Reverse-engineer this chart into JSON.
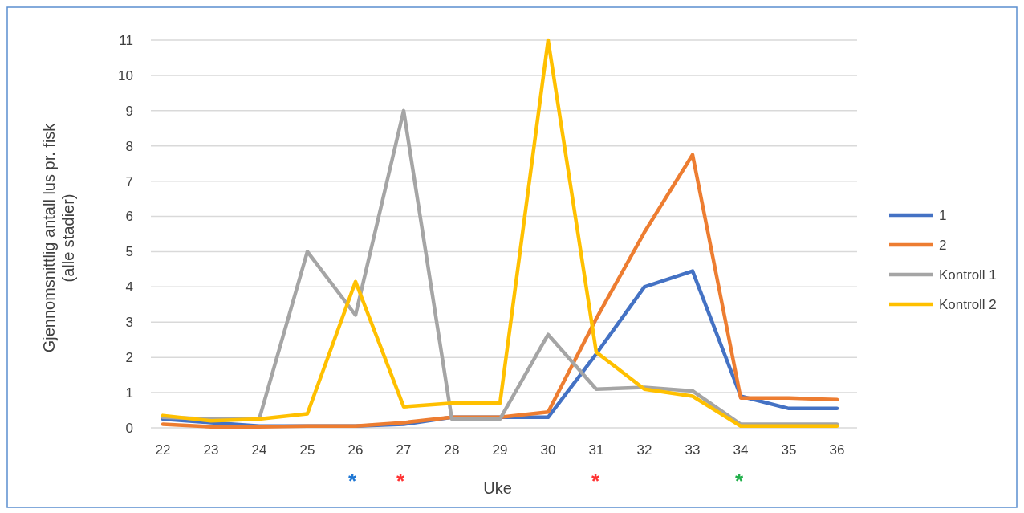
{
  "chart_data": {
    "type": "line",
    "xlabel": "Uke",
    "ylabel": "Gjennomsnittlig antall lus pr. fisk (alle stadier)",
    "categories": [
      "22",
      "23",
      "24",
      "25",
      "26",
      "27",
      "28",
      "29",
      "30",
      "31",
      "32",
      "33",
      "34",
      "35",
      "36"
    ],
    "series": [
      {
        "name": "1",
        "color": "#4472c4",
        "values": [
          0.25,
          0.15,
          0.05,
          0.05,
          0.05,
          0.1,
          0.3,
          0.3,
          0.3,
          2.1,
          4.0,
          4.45,
          0.9,
          0.55,
          0.55
        ]
      },
      {
        "name": "2",
        "color": "#ed7d31",
        "values": [
          0.1,
          0.03,
          0.03,
          0.05,
          0.05,
          0.15,
          0.3,
          0.3,
          0.45,
          3.1,
          5.55,
          7.75,
          0.85,
          0.85,
          0.8
        ]
      },
      {
        "name": "Kontroll 1",
        "color": "#a5a5a5",
        "values": [
          0.3,
          0.25,
          0.25,
          5.0,
          3.2,
          9.0,
          0.25,
          0.25,
          2.65,
          1.1,
          1.15,
          1.05,
          0.1,
          0.1,
          0.1
        ]
      },
      {
        "name": "Kontroll 2",
        "color": "#ffc000",
        "values": [
          0.35,
          0.2,
          0.25,
          0.4,
          4.15,
          0.6,
          0.7,
          0.7,
          11,
          2.15,
          1.1,
          0.9,
          0.05,
          0.05,
          0.05
        ]
      }
    ],
    "ylim": [
      0,
      11
    ],
    "yticks": [
      0,
      1,
      2,
      3,
      4,
      5,
      6,
      7,
      8,
      9,
      10,
      11
    ],
    "grid": "y",
    "legend": "right",
    "marker": "none",
    "line_style": "solid",
    "annotations": [
      "*",
      "*",
      "*",
      "*"
    ]
  }
}
